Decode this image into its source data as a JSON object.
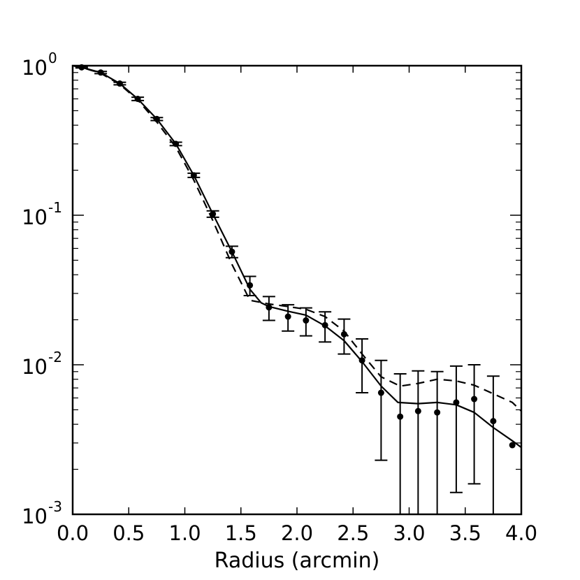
{
  "chart_data": {
    "type": "scatter",
    "xlabel": "Radius (arcmin)",
    "ylabel": "",
    "title": "",
    "xlim": [
      0.0,
      4.0
    ],
    "ylim": [
      0.001,
      1.0
    ],
    "yscale": "log",
    "grid": false,
    "x_ticks": [
      "0.0",
      "0.5",
      "1.0",
      "1.5",
      "2.0",
      "2.5",
      "3.0",
      "3.5",
      "4.0"
    ],
    "x_tick_values": [
      0.0,
      0.5,
      1.0,
      1.5,
      2.0,
      2.5,
      3.0,
      3.5,
      4.0
    ],
    "y_ticks": [
      {
        "value": 1,
        "base": "10",
        "exp": "0"
      },
      {
        "value": 0.1,
        "base": "10",
        "exp": "-1"
      },
      {
        "value": 0.01,
        "base": "10",
        "exp": "-2"
      },
      {
        "value": 0.001,
        "base": "10",
        "exp": "-3"
      }
    ],
    "series": [
      {
        "style": "points-with-errorbars",
        "points": [
          {
            "x": 0.08,
            "y": 0.975,
            "lo": 0.965,
            "hi": 0.985
          },
          {
            "x": 0.25,
            "y": 0.9,
            "lo": 0.885,
            "hi": 0.915
          },
          {
            "x": 0.42,
            "y": 0.76,
            "lo": 0.745,
            "hi": 0.775
          },
          {
            "x": 0.58,
            "y": 0.6,
            "lo": 0.585,
            "hi": 0.615
          },
          {
            "x": 0.75,
            "y": 0.44,
            "lo": 0.43,
            "hi": 0.45
          },
          {
            "x": 0.92,
            "y": 0.3,
            "lo": 0.292,
            "hi": 0.308
          },
          {
            "x": 1.08,
            "y": 0.185,
            "lo": 0.179,
            "hi": 0.191
          },
          {
            "x": 1.25,
            "y": 0.102,
            "lo": 0.097,
            "hi": 0.107
          },
          {
            "x": 1.42,
            "y": 0.057,
            "lo": 0.052,
            "hi": 0.062
          },
          {
            "x": 1.58,
            "y": 0.034,
            "lo": 0.029,
            "hi": 0.039
          },
          {
            "x": 1.75,
            "y": 0.0242,
            "lo": 0.0198,
            "hi": 0.0286
          },
          {
            "x": 1.92,
            "y": 0.021,
            "lo": 0.0168,
            "hi": 0.0252
          },
          {
            "x": 2.08,
            "y": 0.0198,
            "lo": 0.0156,
            "hi": 0.024
          },
          {
            "x": 2.25,
            "y": 0.0184,
            "lo": 0.0142,
            "hi": 0.0226
          },
          {
            "x": 2.42,
            "y": 0.016,
            "lo": 0.0118,
            "hi": 0.0202
          },
          {
            "x": 2.58,
            "y": 0.0107,
            "lo": 0.0065,
            "hi": 0.0149
          },
          {
            "x": 2.75,
            "y": 0.0065,
            "lo": 0.0023,
            "hi": 0.0107
          },
          {
            "x": 2.92,
            "y": 0.0045,
            "lo": 0.0009,
            "hi": 0.0087
          },
          {
            "x": 3.08,
            "y": 0.0049,
            "lo": 0.0009,
            "hi": 0.0091
          },
          {
            "x": 3.25,
            "y": 0.0048,
            "lo": 0.0009,
            "hi": 0.009
          },
          {
            "x": 3.42,
            "y": 0.0056,
            "lo": 0.0014,
            "hi": 0.0098
          },
          {
            "x": 3.58,
            "y": 0.0059,
            "lo": 0.0016,
            "hi": 0.01
          },
          {
            "x": 3.75,
            "y": 0.0042,
            "lo": 0.0009,
            "hi": 0.0084
          },
          {
            "x": 3.92,
            "y": 0.0029,
            "lo": 0.0029,
            "hi": 0.0029
          }
        ]
      },
      {
        "style": "solid-line",
        "x": [
          0.0,
          0.08,
          0.25,
          0.42,
          0.58,
          0.75,
          0.92,
          1.08,
          1.25,
          1.42,
          1.58,
          1.68,
          1.75,
          1.92,
          2.08,
          2.25,
          2.42,
          2.58,
          2.75,
          2.9,
          3.08,
          3.25,
          3.42,
          3.58,
          3.75,
          3.92,
          4.0
        ],
        "y": [
          1.0,
          0.975,
          0.9,
          0.76,
          0.6,
          0.44,
          0.3,
          0.185,
          0.102,
          0.057,
          0.032,
          0.026,
          0.0245,
          0.0228,
          0.0215,
          0.0182,
          0.0145,
          0.0105,
          0.0072,
          0.0056,
          0.0055,
          0.0056,
          0.0054,
          0.0048,
          0.0038,
          0.0031,
          0.0028
        ]
      },
      {
        "style": "dashed-line",
        "x": [
          0.0,
          0.08,
          0.25,
          0.42,
          0.58,
          0.75,
          0.92,
          1.08,
          1.25,
          1.42,
          1.58,
          1.75,
          1.92,
          2.08,
          2.25,
          2.42,
          2.58,
          2.75,
          2.92,
          3.08,
          3.25,
          3.42,
          3.58,
          3.75,
          3.92,
          4.0
        ],
        "y": [
          1.0,
          0.975,
          0.89,
          0.75,
          0.59,
          0.42,
          0.285,
          0.172,
          0.092,
          0.047,
          0.027,
          0.0255,
          0.0245,
          0.0235,
          0.021,
          0.0168,
          0.0118,
          0.0083,
          0.0072,
          0.0075,
          0.008,
          0.0078,
          0.0073,
          0.0064,
          0.0056,
          0.0049
        ]
      }
    ]
  }
}
